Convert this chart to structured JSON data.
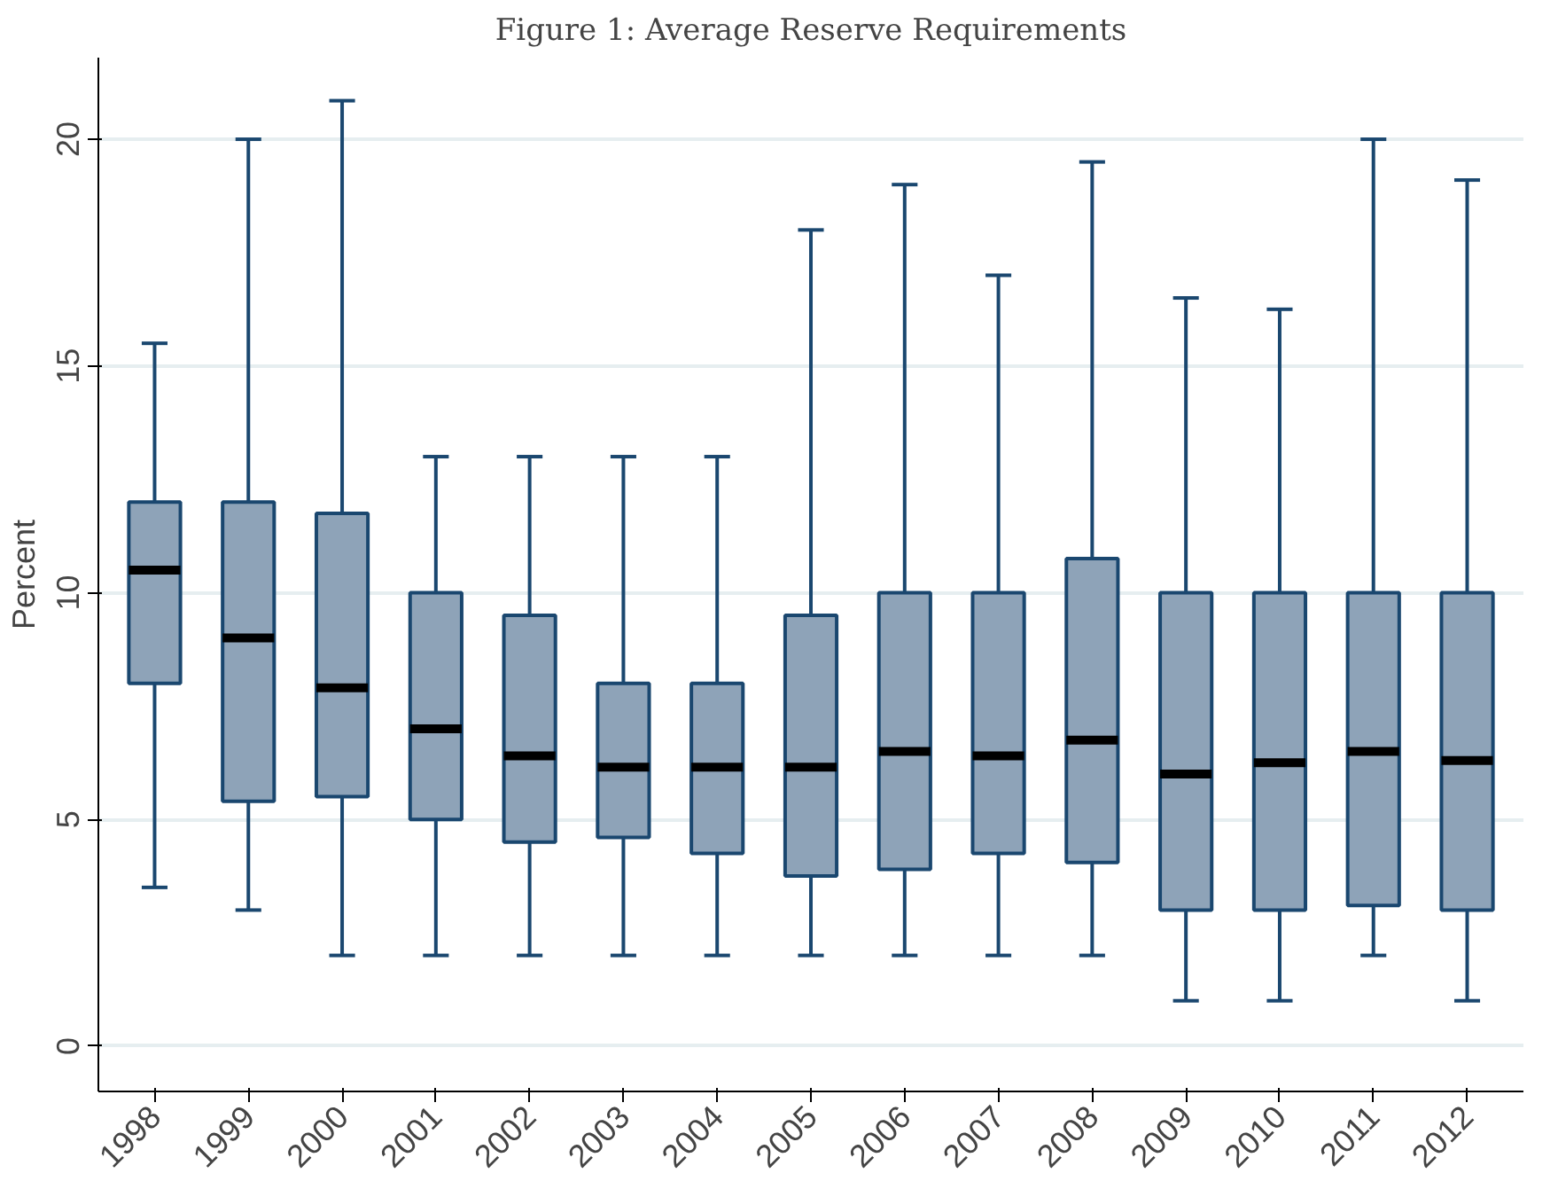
{
  "chart_data": {
    "type": "box",
    "title": "Figure 1: Average Reserve Requirements",
    "ylabel": "Percent",
    "categories": [
      "1998",
      "1999",
      "2000",
      "2001",
      "2002",
      "2003",
      "2004",
      "2005",
      "2006",
      "2007",
      "2008",
      "2009",
      "2010",
      "2011",
      "2012"
    ],
    "ylim": [
      -1,
      21.8
    ],
    "yticks": [
      0,
      5,
      10,
      15,
      20
    ],
    "grid": "y",
    "series": [
      {
        "color": "#8ea3b8",
        "boxes": [
          {
            "low": 3.5,
            "q1": 8,
            "median": 10.5,
            "q3": 12,
            "high": 15.5
          },
          {
            "low": 3,
            "q1": 5.4,
            "median": 9,
            "q3": 12,
            "high": 20
          },
          {
            "low": 2,
            "q1": 5.5,
            "median": 7.9,
            "q3": 11.75,
            "high": 20.85
          },
          {
            "low": 2,
            "q1": 5,
            "median": 7,
            "q3": 10,
            "high": 13
          },
          {
            "low": 2,
            "q1": 4.5,
            "median": 6.4,
            "q3": 9.5,
            "high": 13
          },
          {
            "low": 2,
            "q1": 4.6,
            "median": 6.15,
            "q3": 8,
            "high": 13
          },
          {
            "low": 2,
            "q1": 4.25,
            "median": 6.15,
            "q3": 8,
            "high": 13
          },
          {
            "low": 2,
            "q1": 3.75,
            "median": 6.15,
            "q3": 9.5,
            "high": 18
          },
          {
            "low": 2,
            "q1": 3.9,
            "median": 6.5,
            "q3": 10,
            "high": 19
          },
          {
            "low": 2,
            "q1": 4.25,
            "median": 6.4,
            "q3": 10,
            "high": 17
          },
          {
            "low": 2,
            "q1": 4.05,
            "median": 6.75,
            "q3": 10.75,
            "high": 19.5
          },
          {
            "low": 1,
            "q1": 3,
            "median": 6,
            "q3": 10,
            "high": 16.5
          },
          {
            "low": 1,
            "q1": 3,
            "median": 6.25,
            "q3": 10,
            "high": 16.25
          },
          {
            "low": 2,
            "q1": 3.1,
            "median": 6.5,
            "q3": 10,
            "high": 20
          },
          {
            "low": 1,
            "q1": 3,
            "median": 6.3,
            "q3": 10,
            "high": 19.1
          }
        ]
      }
    ]
  }
}
